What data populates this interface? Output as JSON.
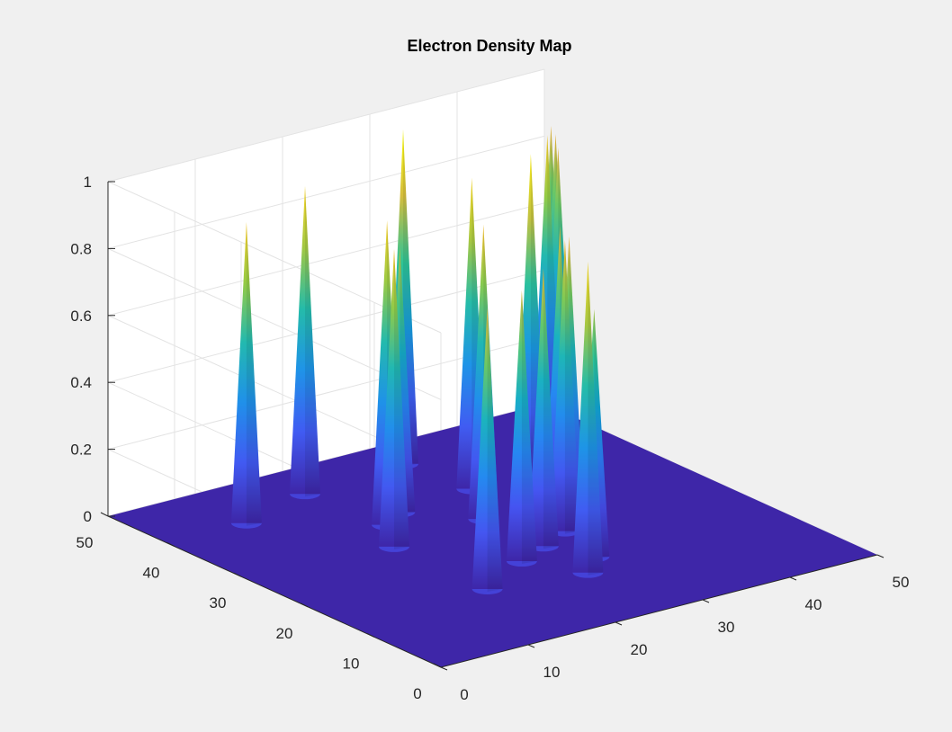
{
  "chart_data": {
    "type": "surface3d",
    "title": "Electron Density Map",
    "xlabel": "",
    "ylabel": "",
    "zlabel": "",
    "xlim": [
      0,
      50
    ],
    "ylim": [
      0,
      50
    ],
    "zlim": [
      0,
      1
    ],
    "xticks": [
      0,
      10,
      20,
      30,
      40,
      50
    ],
    "yticks": [
      0,
      10,
      20,
      30,
      40,
      50
    ],
    "zticks": [
      0,
      0.2,
      0.4,
      0.6,
      0.8,
      1
    ],
    "xtick_labels": [
      "0",
      "10",
      "20",
      "30",
      "40",
      "50"
    ],
    "ytick_labels": [
      "0",
      "10",
      "20",
      "30",
      "40",
      "50"
    ],
    "ztick_labels": [
      "0",
      "0.2",
      "0.4",
      "0.6",
      "0.8",
      "1"
    ],
    "grid": true,
    "colormap": "parula",
    "baseline_color": "#3e26a8",
    "peaks": [
      {
        "x": 9,
        "y": 41,
        "z": 0.9
      },
      {
        "x": 18,
        "y": 44,
        "z": 0.92
      },
      {
        "x": 16,
        "y": 28,
        "z": 0.89
      },
      {
        "x": 27,
        "y": 29,
        "z": 0.88
      },
      {
        "x": 31,
        "y": 36,
        "z": 0.93
      },
      {
        "x": 30,
        "y": 45,
        "z": 1.0
      },
      {
        "x": 37,
        "y": 35,
        "z": 0.97
      },
      {
        "x": 35,
        "y": 28,
        "z": 0.83
      },
      {
        "x": 26,
        "y": 12,
        "z": 0.93
      },
      {
        "x": 16,
        "y": 14,
        "z": 0.84
      },
      {
        "x": 23,
        "y": 18,
        "z": 0.81
      },
      {
        "x": 27,
        "y": 20,
        "z": 0.83
      },
      {
        "x": 31,
        "y": 22,
        "z": 0.87
      },
      {
        "x": 33,
        "y": 24,
        "z": 0.85
      },
      {
        "x": 19,
        "y": 33,
        "z": 0.91
      },
      {
        "x": 22,
        "y": 35,
        "z": 0.79
      },
      {
        "x": 29,
        "y": 15,
        "z": 0.74
      },
      {
        "x": 45,
        "y": 43,
        "z": 0.9
      },
      {
        "x": 47,
        "y": 44,
        "z": 0.84
      },
      {
        "x": 49,
        "y": 47,
        "z": 0.84
      },
      {
        "x": 50,
        "y": 49,
        "z": 0.84
      }
    ]
  }
}
